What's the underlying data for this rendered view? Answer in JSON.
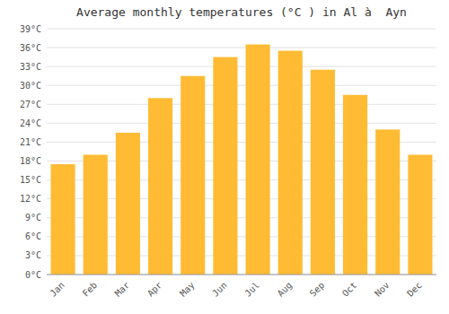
{
  "chart_data": {
    "type": "bar",
    "title": "Average monthly temperatures (°C ) in Al à  Ayn",
    "categories": [
      "Jan",
      "Feb",
      "Mar",
      "Apr",
      "May",
      "Jun",
      "Jul",
      "Aug",
      "Sep",
      "Oct",
      "Nov",
      "Dec"
    ],
    "values": [
      17.5,
      19.0,
      22.5,
      28.0,
      31.5,
      34.5,
      36.5,
      35.5,
      32.5,
      28.5,
      23.0,
      19.0
    ],
    "color": "#FFBB33",
    "ylim": [
      0,
      39
    ],
    "yticks": [
      {
        "value": 0,
        "label": "0°C"
      },
      {
        "value": 3,
        "label": "3°C"
      },
      {
        "value": 6,
        "label": "6°C"
      },
      {
        "value": 9,
        "label": "9°C"
      },
      {
        "value": 12,
        "label": "12°C"
      },
      {
        "value": 15,
        "label": "15°C"
      },
      {
        "value": 18,
        "label": "18°C"
      },
      {
        "value": 21,
        "label": "21°C"
      },
      {
        "value": 24,
        "label": "24°C"
      },
      {
        "value": 27,
        "label": "27°C"
      },
      {
        "value": 30,
        "label": "30°C"
      },
      {
        "value": 33,
        "label": "33°C"
      },
      {
        "value": 36,
        "label": "36°C"
      },
      {
        "value": 39,
        "label": "39°C"
      }
    ],
    "grid": true
  }
}
